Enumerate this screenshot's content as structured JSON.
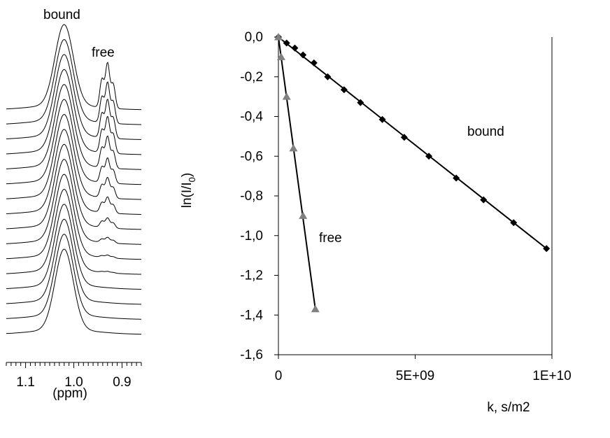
{
  "chart_data": [
    {
      "type": "spectra",
      "labels": {
        "peak_bound": "bound",
        "peak_free": "free"
      },
      "xaxis": {
        "ticks": [
          "1.1",
          "1.0",
          "0.9"
        ],
        "tick_values": [
          1.1,
          1.0,
          0.9
        ],
        "label": "(ppm)",
        "range": [
          1.14,
          0.86
        ]
      },
      "spectra_count": 16,
      "bound_peak_ppm": 1.02,
      "free_peak_ppm": 0.93,
      "free_peak_relative_heights": [
        1.0,
        0.9,
        0.85,
        0.8,
        0.7,
        0.55,
        0.45,
        0.35,
        0.22,
        0.12,
        0.06,
        0.03,
        0.0,
        0.0,
        0.0,
        0.0
      ]
    },
    {
      "type": "scatter",
      "ylabel": "ln(I/I",
      "ylabel_sub": "0",
      "ylabel_end": ")",
      "xlabel": "k, s/m2",
      "ylim": [
        -1.6,
        0.0
      ],
      "xlim": [
        0,
        10000000000
      ],
      "yticks": [
        "0,0",
        "-0,2",
        "-0,4",
        "-0,6",
        "-0,8",
        "-1,0",
        "-1,2",
        "-1,4",
        "-1,6"
      ],
      "ytick_values": [
        0.0,
        -0.2,
        -0.4,
        -0.6,
        -0.8,
        -1.0,
        -1.2,
        -1.4,
        -1.6
      ],
      "xticks": [
        "0",
        "5E+09",
        "1E+10"
      ],
      "xtick_values": [
        0,
        5000000000,
        10000000000
      ],
      "series": [
        {
          "name": "bound",
          "marker": "diamond",
          "color": "#000000",
          "x": [
            0,
            300000000,
            600000000,
            900000000,
            1300000000,
            1800000000,
            2400000000,
            3000000000,
            3800000000,
            4600000000,
            5500000000,
            6500000000,
            7500000000,
            8600000000,
            9800000000
          ],
          "y": [
            0.0,
            -0.03,
            -0.055,
            -0.09,
            -0.13,
            -0.2,
            -0.265,
            -0.33,
            -0.415,
            -0.505,
            -0.6,
            -0.71,
            -0.82,
            -0.935,
            -1.065
          ],
          "fit_slope": -1.087e-10
        },
        {
          "name": "free",
          "marker": "triangle",
          "color": "#808080",
          "x": [
            0,
            100000000,
            300000000,
            550000000,
            900000000,
            1350000000
          ],
          "y": [
            0.0,
            -0.1,
            -0.3,
            -0.56,
            -0.9,
            -1.37
          ],
          "fit_slope": -1.015e-09
        }
      ]
    }
  ]
}
